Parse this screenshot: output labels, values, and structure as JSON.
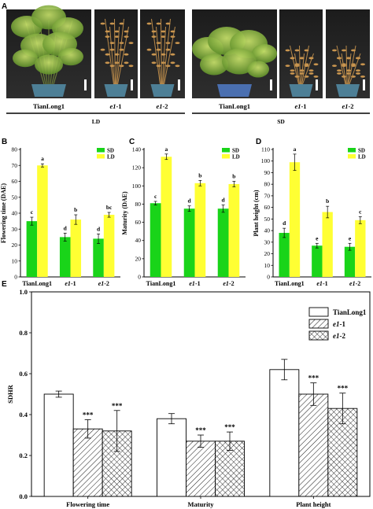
{
  "panel_a": {
    "letter": "A",
    "photos": [
      {
        "label": "TianLong1",
        "kind": "tall-green"
      },
      {
        "label": "e1-1",
        "kind": "dry"
      },
      {
        "label": "e1-2",
        "kind": "dry"
      },
      {
        "label": "TianLong1",
        "kind": "green-leafy"
      },
      {
        "label": "e1-1",
        "kind": "dry-small"
      },
      {
        "label": "e1-2",
        "kind": "dry-small"
      }
    ],
    "conditions": [
      "LD",
      "SD"
    ]
  },
  "colors": {
    "sd": "#19d419",
    "ld": "#ffff33",
    "bar_stroke": "#444444"
  },
  "chart_data": [
    {
      "panel": "B",
      "type": "bar",
      "categories": [
        "TianLong1",
        "e1-1",
        "e1-2"
      ],
      "ylabel": "Flowering time (DAE)",
      "ylim": [
        0,
        80
      ],
      "yticks": [
        0,
        10,
        20,
        30,
        40,
        50,
        60,
        70,
        80
      ],
      "legend": [
        "SD",
        "LD"
      ],
      "legend_position": "top-right",
      "series": [
        {
          "name": "SD",
          "values": [
            35,
            25,
            24
          ],
          "errors": [
            2.5,
            2.5,
            3
          ],
          "letters": [
            "c",
            "d",
            "d"
          ]
        },
        {
          "name": "LD",
          "values": [
            70,
            36,
            39
          ],
          "errors": [
            1,
            3,
            1.5
          ],
          "letters": [
            "a",
            "b",
            "bc"
          ]
        }
      ]
    },
    {
      "panel": "C",
      "type": "bar",
      "categories": [
        "TianLong1",
        "e1-1",
        "e1-2"
      ],
      "ylabel": "Maturity (DAE)",
      "ylim": [
        0,
        140
      ],
      "yticks": [
        0,
        20,
        40,
        60,
        80,
        100,
        120,
        140
      ],
      "legend": [
        "SD",
        "LD"
      ],
      "legend_position": "top-right",
      "series": [
        {
          "name": "SD",
          "values": [
            81,
            75,
            75
          ],
          "errors": [
            2,
            3,
            4
          ],
          "letters": [
            "c",
            "d",
            "d"
          ]
        },
        {
          "name": "LD",
          "values": [
            132,
            103,
            102
          ],
          "errors": [
            3,
            3,
            3
          ],
          "letters": [
            "a",
            "b",
            "b"
          ]
        }
      ]
    },
    {
      "panel": "D",
      "type": "bar",
      "categories": [
        "TianLong1",
        "e1-1",
        "e1-2"
      ],
      "ylabel": "Plant height (cm)",
      "ylim": [
        0,
        110
      ],
      "yticks": [
        0,
        10,
        20,
        30,
        40,
        50,
        60,
        70,
        80,
        90,
        100,
        110
      ],
      "legend": [
        "SD",
        "LD"
      ],
      "legend_position": "top-right",
      "series": [
        {
          "name": "SD",
          "values": [
            38,
            27,
            26
          ],
          "errors": [
            4,
            2,
            3
          ],
          "letters": [
            "d",
            "e",
            "e"
          ]
        },
        {
          "name": "LD",
          "values": [
            99,
            56,
            49
          ],
          "errors": [
            7,
            5,
            3
          ],
          "letters": [
            "a",
            "b",
            "c"
          ]
        }
      ]
    },
    {
      "panel": "E",
      "type": "bar",
      "categories": [
        "Flowering time",
        "Maturity",
        "Plant height"
      ],
      "ylabel": "SDHR",
      "ylim": [
        0,
        1.0
      ],
      "yticks": [
        0.0,
        0.2,
        0.4,
        0.6,
        0.8,
        1.0
      ],
      "legend_position": "top-right",
      "series": [
        {
          "name": "TianLong1",
          "pattern": "none",
          "values": [
            0.5,
            0.38,
            0.62
          ],
          "errors": [
            0.015,
            0.025,
            0.05
          ],
          "marks": [
            "",
            "",
            ""
          ]
        },
        {
          "name": "e1-1",
          "pattern": "hatch",
          "values": [
            0.33,
            0.27,
            0.5
          ],
          "errors": [
            0.045,
            0.03,
            0.055
          ],
          "marks": [
            "***",
            "***",
            "***"
          ]
        },
        {
          "name": "e1-2",
          "pattern": "cross",
          "values": [
            0.32,
            0.27,
            0.43
          ],
          "errors": [
            0.1,
            0.045,
            0.075
          ],
          "marks": [
            "***",
            "***",
            "***"
          ]
        }
      ]
    }
  ]
}
